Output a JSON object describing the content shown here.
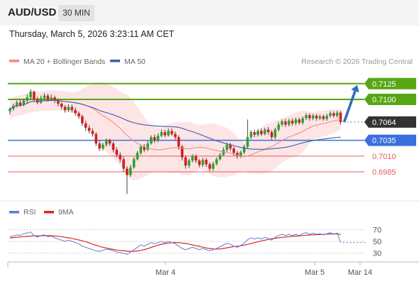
{
  "header": {
    "symbol": "AUD/USD",
    "timeframe": "30 MIN",
    "datetime": "Thursday, March 5, 2026 3:23:11 AM CET"
  },
  "legend": {
    "bollinger_label": "MA 20 + Bollinger Bands",
    "ma50_label": "MA 50",
    "copyright": "Research © 2026 Trading Central",
    "rsi_label": "RSI",
    "rsi_ma_label": "9MA"
  },
  "colors": {
    "candle_up": "#2ba52b",
    "candle_down": "#d91c1c",
    "resistance": "#58a614",
    "support_blue": "#3a6fe0",
    "support_red": "#e45b5b",
    "ma20": "#f08a8a",
    "band_fill": "#fde0e0",
    "ma50": "#3d5ea8",
    "arrow": "#2f6db8",
    "rsi": "#5b7fd4",
    "rsi_ma": "#d92525",
    "last_price": "#333333"
  },
  "chart_data": [
    {
      "type": "candlestick",
      "title": "AUD/USD",
      "x_ticks": [
        "Mar 4",
        "Mar 5",
        "Mar 14"
      ],
      "y_range": [
        0.694,
        0.7145
      ],
      "last_price": 0.7064,
      "levels": [
        {
          "value": 0.7125,
          "label": "0.7125",
          "kind": "resistance"
        },
        {
          "value": 0.71,
          "label": "0.7100",
          "kind": "resistance"
        },
        {
          "value": 0.7064,
          "label": "0.7064",
          "kind": "last"
        },
        {
          "value": 0.7035,
          "label": "0.7035",
          "kind": "pivot"
        },
        {
          "value": 0.701,
          "label": "0.7010",
          "kind": "support"
        },
        {
          "value": 0.6985,
          "label": "0.6985",
          "kind": "support"
        }
      ],
      "candles": [
        [
          0.7081,
          0.7085,
          0.7076,
          0.7087
        ],
        [
          0.7085,
          0.709,
          0.7082,
          0.7093
        ],
        [
          0.709,
          0.7095,
          0.7087,
          0.7098
        ],
        [
          0.7095,
          0.7091,
          0.7088,
          0.7099
        ],
        [
          0.7091,
          0.7098,
          0.7089,
          0.7101
        ],
        [
          0.7098,
          0.7103,
          0.7094,
          0.7108
        ],
        [
          0.7103,
          0.7112,
          0.71,
          0.7116
        ],
        [
          0.7112,
          0.71,
          0.7097,
          0.7114
        ],
        [
          0.71,
          0.7095,
          0.7092,
          0.7104
        ],
        [
          0.7095,
          0.7102,
          0.7093,
          0.7106
        ],
        [
          0.7102,
          0.7106,
          0.7099,
          0.711
        ],
        [
          0.7106,
          0.71,
          0.7096,
          0.7109
        ],
        [
          0.71,
          0.7103,
          0.7097,
          0.7108
        ],
        [
          0.7103,
          0.7098,
          0.7094,
          0.7106
        ],
        [
          0.7098,
          0.7093,
          0.7089,
          0.7101
        ],
        [
          0.7093,
          0.7088,
          0.7084,
          0.7096
        ],
        [
          0.7088,
          0.7083,
          0.7079,
          0.7091
        ],
        [
          0.7083,
          0.7088,
          0.708,
          0.7092
        ],
        [
          0.7088,
          0.7083,
          0.7079,
          0.7092
        ],
        [
          0.7083,
          0.7078,
          0.7074,
          0.7087
        ],
        [
          0.7078,
          0.7073,
          0.7069,
          0.7081
        ],
        [
          0.7073,
          0.7062,
          0.7058,
          0.7076
        ],
        [
          0.7062,
          0.7055,
          0.705,
          0.7066
        ],
        [
          0.7055,
          0.705,
          0.7046,
          0.7059
        ],
        [
          0.705,
          0.7045,
          0.7041,
          0.7054
        ],
        [
          0.7045,
          0.703,
          0.7026,
          0.7048
        ],
        [
          0.703,
          0.7022,
          0.7018,
          0.7034
        ],
        [
          0.7022,
          0.7028,
          0.7019,
          0.7031
        ],
        [
          0.7028,
          0.7035,
          0.7025,
          0.7038
        ],
        [
          0.7035,
          0.703,
          0.7026,
          0.7038
        ],
        [
          0.703,
          0.702,
          0.7016,
          0.7033
        ],
        [
          0.702,
          0.7012,
          0.7008,
          0.7024
        ],
        [
          0.7012,
          0.7005,
          0.7,
          0.7016
        ],
        [
          0.7005,
          0.699,
          0.6985,
          0.7009
        ],
        [
          0.699,
          0.698,
          0.695,
          0.6994
        ],
        [
          0.698,
          0.6992,
          0.6977,
          0.6996
        ],
        [
          0.6992,
          0.7005,
          0.699,
          0.7008
        ],
        [
          0.7005,
          0.7015,
          0.7003,
          0.7018
        ],
        [
          0.7015,
          0.7025,
          0.7012,
          0.7028
        ],
        [
          0.7025,
          0.702,
          0.7016,
          0.7029
        ],
        [
          0.702,
          0.703,
          0.7018,
          0.7034
        ],
        [
          0.703,
          0.704,
          0.7028,
          0.7043
        ],
        [
          0.704,
          0.7035,
          0.7031,
          0.7044
        ],
        [
          0.7035,
          0.7042,
          0.7032,
          0.7046
        ],
        [
          0.7042,
          0.7048,
          0.704,
          0.7052
        ],
        [
          0.7048,
          0.7043,
          0.704,
          0.7052
        ],
        [
          0.7043,
          0.705,
          0.7041,
          0.7054
        ],
        [
          0.705,
          0.7045,
          0.7042,
          0.7054
        ],
        [
          0.7045,
          0.704,
          0.7036,
          0.7049
        ],
        [
          0.704,
          0.7025,
          0.702,
          0.7043
        ],
        [
          0.7025,
          0.7008,
          0.7003,
          0.7028
        ],
        [
          0.7008,
          0.6995,
          0.699,
          0.7011
        ],
        [
          0.6995,
          0.7003,
          0.6991,
          0.7006
        ],
        [
          0.7003,
          0.701,
          0.7,
          0.7013
        ],
        [
          0.701,
          0.7003,
          0.6999,
          0.7013
        ],
        [
          0.7003,
          0.6996,
          0.6992,
          0.7006
        ],
        [
          0.6996,
          0.7004,
          0.6993,
          0.7007
        ],
        [
          0.7004,
          0.6997,
          0.6993,
          0.7007
        ],
        [
          0.6997,
          0.699,
          0.6986,
          0.7
        ],
        [
          0.699,
          0.6998,
          0.6987,
          0.7001
        ],
        [
          0.6998,
          0.7005,
          0.6995,
          0.7008
        ],
        [
          0.7005,
          0.7012,
          0.7003,
          0.7015
        ],
        [
          0.7012,
          0.702,
          0.701,
          0.7024
        ],
        [
          0.702,
          0.7028,
          0.7017,
          0.7031
        ],
        [
          0.7028,
          0.7022,
          0.7018,
          0.7031
        ],
        [
          0.7022,
          0.7015,
          0.7011,
          0.7025
        ],
        [
          0.7015,
          0.701,
          0.7006,
          0.7018
        ],
        [
          0.701,
          0.7016,
          0.7007,
          0.7019
        ],
        [
          0.7016,
          0.7025,
          0.7013,
          0.7028
        ],
        [
          0.7025,
          0.704,
          0.7022,
          0.7068
        ],
        [
          0.704,
          0.7048,
          0.7037,
          0.7051
        ],
        [
          0.7048,
          0.7044,
          0.704,
          0.7052
        ],
        [
          0.7044,
          0.705,
          0.7041,
          0.7053
        ],
        [
          0.705,
          0.7045,
          0.7042,
          0.7054
        ],
        [
          0.7045,
          0.7052,
          0.7043,
          0.7055
        ],
        [
          0.7052,
          0.7048,
          0.7044,
          0.7056
        ],
        [
          0.7048,
          0.704,
          0.7036,
          0.7051
        ],
        [
          0.704,
          0.7052,
          0.7037,
          0.7055
        ],
        [
          0.7052,
          0.706,
          0.7049,
          0.7064
        ],
        [
          0.706,
          0.7065,
          0.7057,
          0.7068
        ],
        [
          0.7065,
          0.706,
          0.7056,
          0.7069
        ],
        [
          0.706,
          0.7066,
          0.7057,
          0.7069
        ],
        [
          0.7066,
          0.7062,
          0.7058,
          0.707
        ],
        [
          0.7062,
          0.7068,
          0.7059,
          0.7071
        ],
        [
          0.7068,
          0.7063,
          0.706,
          0.7071
        ],
        [
          0.7063,
          0.707,
          0.706,
          0.7073
        ],
        [
          0.707,
          0.7075,
          0.7067,
          0.7078
        ],
        [
          0.7075,
          0.707,
          0.7066,
          0.7078
        ],
        [
          0.707,
          0.7074,
          0.7067,
          0.7077
        ],
        [
          0.7074,
          0.707,
          0.7066,
          0.7077
        ],
        [
          0.707,
          0.7073,
          0.7067,
          0.7076
        ],
        [
          0.7073,
          0.7069,
          0.7066,
          0.7076
        ],
        [
          0.7069,
          0.7074,
          0.7066,
          0.7077
        ],
        [
          0.7074,
          0.7078,
          0.7071,
          0.7081
        ],
        [
          0.7078,
          0.7074,
          0.7071,
          0.7081
        ],
        [
          0.7074,
          0.7079,
          0.7071,
          0.7082
        ],
        [
          0.7079,
          0.7064,
          0.706,
          0.7082
        ]
      ]
    },
    {
      "type": "line",
      "title": "RSI",
      "y_ticks": [
        70,
        50,
        30
      ],
      "y_range": [
        20,
        80
      ],
      "series": [
        {
          "name": "RSI",
          "values": [
            58,
            59,
            61,
            60,
            63,
            64,
            66,
            60,
            57,
            60,
            61,
            58,
            59,
            56,
            54,
            52,
            50,
            52,
            50,
            48,
            46,
            42,
            40,
            38,
            36,
            34,
            33,
            35,
            37,
            36,
            34,
            32,
            31,
            30,
            28,
            32,
            36,
            40,
            44,
            42,
            45,
            48,
            46,
            48,
            50,
            48,
            50,
            48,
            46,
            42,
            38,
            36,
            38,
            40,
            38,
            36,
            38,
            36,
            34,
            36,
            38,
            41,
            44,
            47,
            45,
            42,
            40,
            43,
            47,
            53,
            56,
            54,
            56,
            54,
            57,
            55,
            52,
            57,
            60,
            62,
            60,
            62,
            60,
            62,
            60,
            63,
            65,
            62,
            64,
            62,
            63,
            61,
            63,
            65,
            62,
            64,
            48
          ]
        },
        {
          "name": "9MA",
          "values": [
            56,
            56.5,
            57,
            57.5,
            58,
            58.5,
            59,
            59.5,
            59.5,
            59.5,
            59.7,
            59.8,
            59.6,
            59.2,
            58.7,
            58,
            57,
            56,
            55,
            53.8,
            52.5,
            51,
            49.5,
            47.5,
            45.5,
            43.5,
            41.5,
            40,
            38.8,
            37.5,
            36.3,
            35.4,
            34.8,
            34.3,
            33.7,
            33.2,
            33.2,
            33.8,
            34.8,
            36.2,
            37.8,
            39.8,
            41.8,
            43.6,
            45.2,
            46.3,
            47.2,
            47.9,
            48.2,
            47.8,
            47.3,
            46.5,
            45.4,
            44,
            42.7,
            41.5,
            40.2,
            39,
            38,
            37.3,
            37,
            37.3,
            38.1,
            39.2,
            40.3,
            41.3,
            41.9,
            42.6,
            43.6,
            45,
            46.5,
            47.9,
            49.3,
            50.8,
            52.1,
            53.4,
            54.5,
            55.3,
            56.1,
            56.9,
            57.5,
            58,
            58.5,
            59,
            59.3,
            59.8,
            60.4,
            60.8,
            61.1,
            61.4,
            61.6,
            61.9,
            62.2,
            62.5,
            62.6,
            62.7,
            61.5
          ]
        }
      ]
    }
  ]
}
